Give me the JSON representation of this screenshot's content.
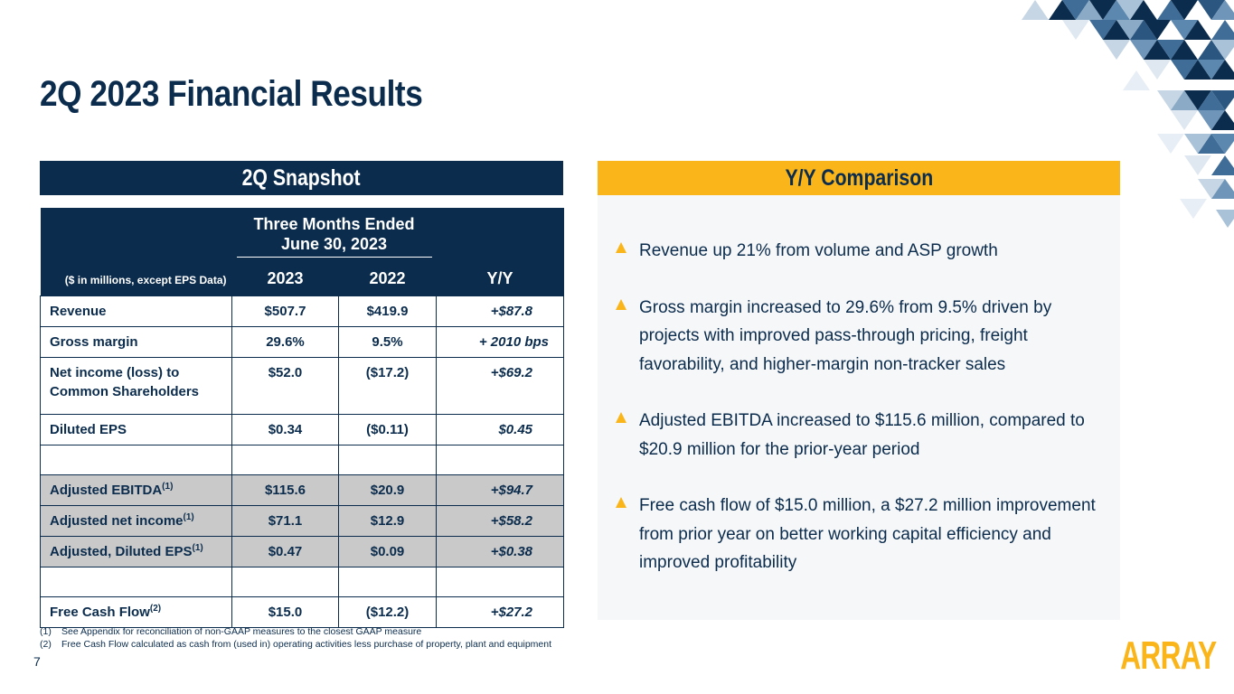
{
  "title": "2Q 2023 Financial Results",
  "snapshot": {
    "header": "2Q Snapshot",
    "period_line1": "Three Months Ended",
    "period_line2": "June 30, 2023",
    "units_note": "($ in millions, except EPS Data)",
    "col_2023": "2023",
    "col_2022": "2022",
    "col_yy": "Y/Y",
    "rows": [
      {
        "label": "Revenue",
        "sup": "",
        "v2023": "$507.7",
        "v2022": "$419.9",
        "yy": "+$87.8"
      },
      {
        "label": "Gross margin",
        "sup": "",
        "v2023": "29.6%",
        "v2022": "9.5%",
        "yy": "+ 2010 bps"
      },
      {
        "label_line1": "Net income (loss) to",
        "label_line2": "Common Shareholders",
        "v2023": "$52.0",
        "v2022": "($17.2)",
        "yy": "+$69.2"
      },
      {
        "label": "Diluted EPS",
        "sup": "",
        "v2023": "$0.34",
        "v2022": "($0.11)",
        "yy": "$0.45"
      },
      {
        "label": "Adjusted EBITDA",
        "sup": "(1)",
        "v2023": "$115.6",
        "v2022": "$20.9",
        "yy": "+$94.7"
      },
      {
        "label": "Adjusted net income",
        "sup": "(1)",
        "v2023": "$71.1",
        "v2022": "$12.9",
        "yy": "+$58.2"
      },
      {
        "label": "Adjusted, Diluted EPS",
        "sup": "(1)",
        "v2023": "$0.47",
        "v2022": "$0.09",
        "yy": "+$0.38"
      },
      {
        "label": "Free Cash Flow",
        "sup": "(2)",
        "v2023": "$15.0",
        "v2022": "($12.2)",
        "yy": "+$27.2"
      }
    ]
  },
  "footnotes": [
    {
      "num": "(1)",
      "text": "See Appendix for reconciliation of non-GAAP measures to the closest GAAP measure"
    },
    {
      "num": "(2)",
      "text": "Free Cash Flow calculated as cash from (used in) operating activities less purchase of property, plant and equipment"
    }
  ],
  "page_number": "7",
  "comparison": {
    "header": "Y/Y Comparison",
    "bullets": [
      "Revenue up 21% from volume and ASP growth",
      "Gross margin increased to 29.6% from 9.5% driven by projects with improved pass-through pricing, freight favorability, and higher-margin non-tracker sales",
      "Adjusted EBITDA increased to $115.6 million, compared to $20.9 million for the prior-year period",
      "Free cash flow of $15.0 million, a $27.2 million improvement from prior year on better working capital efficiency and improved profitability"
    ]
  },
  "logo": "ARRAY",
  "colors": {
    "navy": "#0b2c4d",
    "gold": "#fab51a",
    "shade": "#c9c9c9",
    "panel": "#f6f7f8"
  },
  "icons": {
    "bullet": "triangle-bullet-icon",
    "decoration": "triangle-mosaic-icon"
  }
}
